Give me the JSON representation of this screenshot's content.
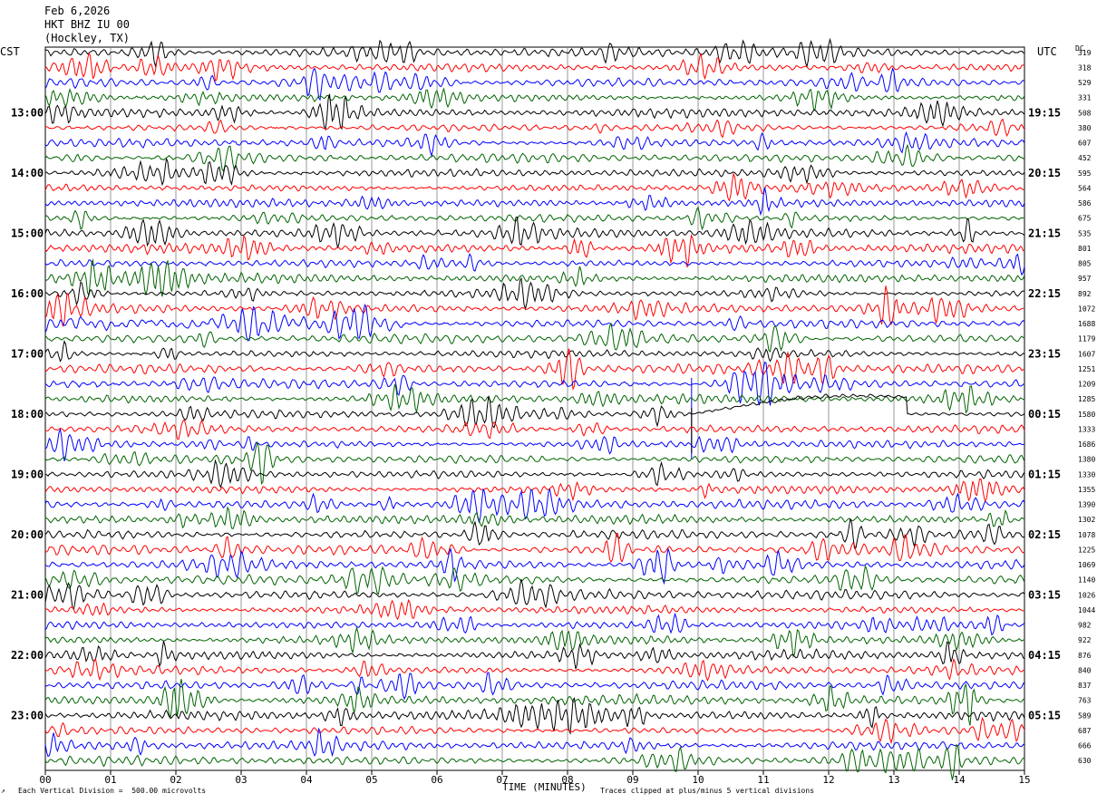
{
  "header": {
    "date": "Feb 6,2026",
    "station": "HKT BHZ IU 00",
    "location": "(Hockley, TX)"
  },
  "left_tz": "CST",
  "right_tz": "UTC",
  "dc_label": "DC",
  "footer": {
    "scale_note": "Each Vertical Division =  500.00 microvolts",
    "xlabel": "TIME (MINUTES)",
    "clip_note": "Traces clipped at plus/minus 5 vertical divisions",
    "corner_mark": "↗"
  },
  "colors": {
    "trace_cycle": [
      "#000000",
      "#ff0000",
      "#0000ff",
      "#006400"
    ],
    "grid": "#808080"
  },
  "chart_data": {
    "type": "line",
    "title": "HKT BHZ IU 00",
    "xlabel": "TIME (MINUTES)",
    "xlim": [
      0,
      15
    ],
    "x_ticks": [
      "00",
      "01",
      "02",
      "03",
      "04",
      "05",
      "06",
      "07",
      "08",
      "09",
      "10",
      "11",
      "12",
      "13",
      "14",
      "15"
    ],
    "left_hour_labels": [
      {
        "row": 4,
        "label": "13:00"
      },
      {
        "row": 8,
        "label": "14:00"
      },
      {
        "row": 12,
        "label": "15:00"
      },
      {
        "row": 16,
        "label": "16:00"
      },
      {
        "row": 20,
        "label": "17:00"
      },
      {
        "row": 24,
        "label": "18:00"
      },
      {
        "row": 28,
        "label": "19:00"
      },
      {
        "row": 32,
        "label": "20:00"
      },
      {
        "row": 36,
        "label": "21:00"
      },
      {
        "row": 40,
        "label": "22:00"
      },
      {
        "row": 44,
        "label": "23:00"
      }
    ],
    "right_hour_labels": [
      {
        "row": 4,
        "label": "19:15"
      },
      {
        "row": 8,
        "label": "20:15"
      },
      {
        "row": 12,
        "label": "21:15"
      },
      {
        "row": 16,
        "label": "22:15"
      },
      {
        "row": 20,
        "label": "23:15"
      },
      {
        "row": 24,
        "label": "00:15"
      },
      {
        "row": 28,
        "label": "01:15"
      },
      {
        "row": 32,
        "label": "02:15"
      },
      {
        "row": 36,
        "label": "03:15"
      },
      {
        "row": 40,
        "label": "04:15"
      },
      {
        "row": 44,
        "label": "05:15"
      }
    ],
    "dc_offsets": [
      "319",
      "318",
      "529",
      "331",
      "508",
      "380",
      "607",
      "452",
      "595",
      "564",
      "586",
      "675",
      "535",
      "801",
      "805",
      "957",
      "892",
      "1072",
      "1688",
      "1179",
      "1607",
      "1251",
      "1209",
      "1285",
      "1580",
      "1333",
      "1686",
      "1380",
      "1330",
      "1355",
      "1390",
      "1302",
      "1078",
      "1225",
      "1069",
      "1140",
      "1026",
      "1044",
      "982",
      "922",
      "876",
      "840",
      "837",
      "763",
      "589",
      "687",
      "666",
      "630"
    ],
    "trace_count": 48,
    "traces_per_hour": 4,
    "minutes_per_trace": 15,
    "annotations": [
      {
        "row": 24,
        "type": "step-and-recovery",
        "start_min": 9.9,
        "end_min": 13.2
      },
      {
        "row": 22,
        "type": "vertical-spike",
        "start_min": 9.9
      },
      {
        "row": 18,
        "type": "elevated-noise",
        "start_min": 0,
        "end_min": 5.5
      }
    ],
    "grid": true
  }
}
